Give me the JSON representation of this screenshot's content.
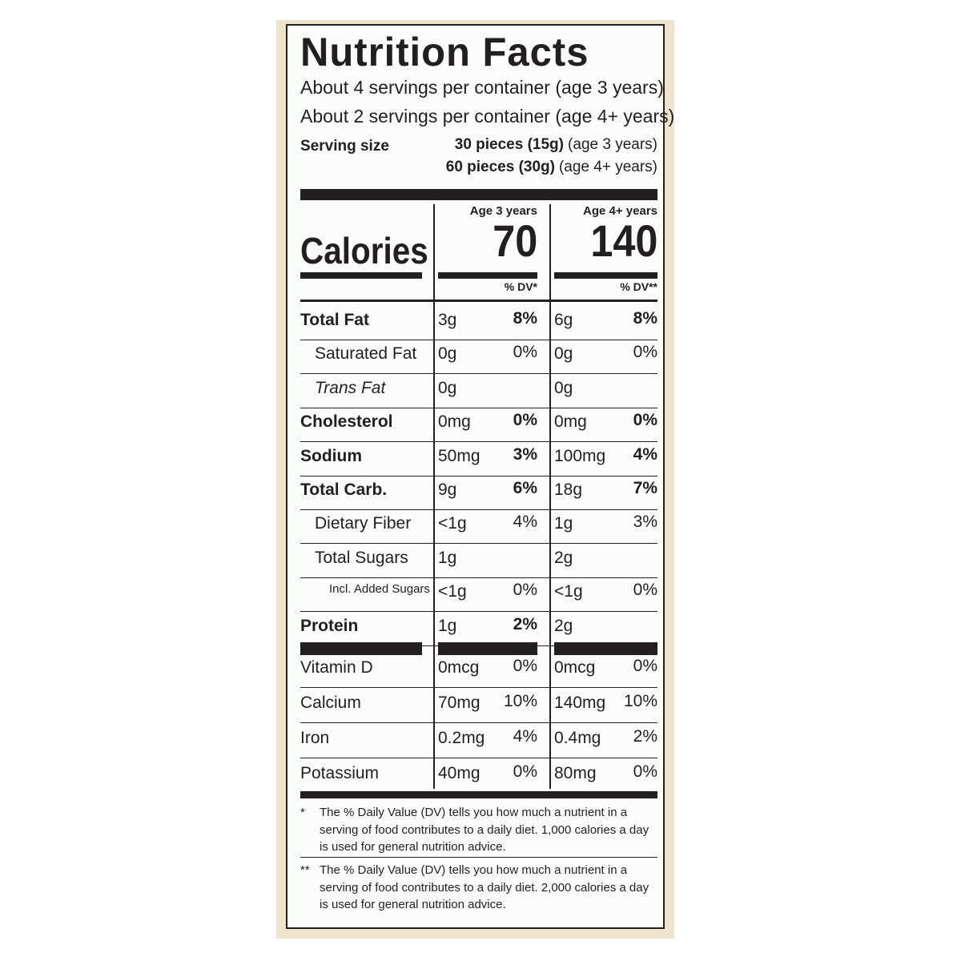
{
  "title": "Nutrition Facts",
  "servings": [
    "About 4 servings per container (age 3 years)",
    "About 2 servings per container (age 4+ years)"
  ],
  "serving_size": {
    "label": "Serving size",
    "lines": [
      {
        "amount": "30 pieces (15g)",
        "note": "(age 3 years)"
      },
      {
        "amount": "60 pieces (30g)",
        "note": "(age 4+ years)"
      }
    ]
  },
  "calories_label": "Calories",
  "columns": [
    {
      "header": "Age 3 years",
      "calories": "70",
      "dv_label": "% DV*"
    },
    {
      "header": "Age 4+ years",
      "calories": "140",
      "dv_label": "% DV**"
    }
  ],
  "nutrients": [
    {
      "name": "Total Fat",
      "bold": true,
      "indent": 0,
      "values": [
        [
          "3g",
          "8%"
        ],
        [
          "6g",
          "8%"
        ]
      ]
    },
    {
      "name": "Saturated Fat",
      "bold": false,
      "indent": 1,
      "values": [
        [
          "0g",
          "0%"
        ],
        [
          "0g",
          "0%"
        ]
      ]
    },
    {
      "name": "Trans Fat",
      "bold": false,
      "indent": 1,
      "values": [
        [
          "0g"
        ],
        [
          "0g"
        ]
      ]
    },
    {
      "name": "Cholesterol",
      "bold": true,
      "indent": 0,
      "values": [
        [
          "0mg",
          "0%"
        ],
        [
          "0mg",
          "0%"
        ]
      ]
    },
    {
      "name": "Sodium",
      "bold": true,
      "indent": 0,
      "values": [
        [
          "50mg",
          "3%"
        ],
        [
          "100mg",
          "4%"
        ]
      ]
    },
    {
      "name": "Total Carb.",
      "bold": true,
      "indent": 0,
      "values": [
        [
          "9g",
          "6%"
        ],
        [
          "18g",
          "7%"
        ]
      ]
    },
    {
      "name": "Dietary Fiber",
      "bold": false,
      "indent": 1,
      "values": [
        [
          "<1g",
          "4%"
        ],
        [
          "1g",
          "3%"
        ]
      ]
    },
    {
      "name": "Total Sugars",
      "bold": false,
      "indent": 1,
      "values": [
        [
          "1g"
        ],
        [
          "2g"
        ]
      ]
    },
    {
      "name": "Incl. Added Sugars",
      "bold": false,
      "indent": 2,
      "values": [
        [
          "<1g",
          "0%"
        ],
        [
          "<1g",
          "0%"
        ]
      ]
    },
    {
      "name": "Protein",
      "bold": true,
      "indent": 0,
      "values": [
        [
          "1g",
          "2%"
        ],
        [
          "2g"
        ]
      ]
    }
  ],
  "vitamins": [
    {
      "name": "Vitamin D",
      "values": [
        [
          "0mcg",
          "0%"
        ],
        [
          "0mcg",
          "0%"
        ]
      ]
    },
    {
      "name": "Calcium",
      "values": [
        [
          "70mg",
          "10%"
        ],
        [
          "140mg",
          "10%"
        ]
      ]
    },
    {
      "name": "Iron",
      "values": [
        [
          "0.2mg",
          "4%"
        ],
        [
          "0.4mg",
          "2%"
        ]
      ]
    },
    {
      "name": "Potassium",
      "values": [
        [
          "40mg",
          "0%"
        ],
        [
          "80mg",
          "0%"
        ]
      ]
    }
  ],
  "footnotes": [
    {
      "marker": "*",
      "text": "The % Daily Value (DV) tells you how much a nutrient in a serving of food contributes to a daily diet. 1,000 calories a day is used for general nutrition advice."
    },
    {
      "marker": "**",
      "text": "The % Daily Value (DV) tells you how much a nutrient in a serving of food contributes to a daily diet. 2,000 calories a day is used for general nutrition advice."
    }
  ]
}
